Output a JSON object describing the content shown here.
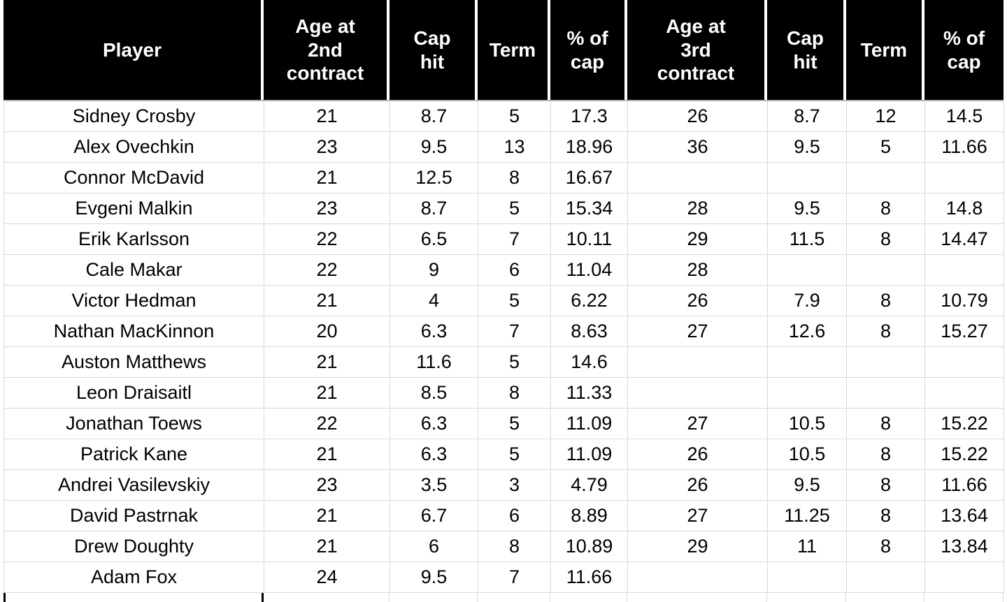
{
  "table": {
    "columns": [
      {
        "label": "Player"
      },
      {
        "label": "Age at 2nd contract"
      },
      {
        "label": "Cap hit"
      },
      {
        "label": "Term"
      },
      {
        "label": "% of cap"
      },
      {
        "label": "Age at 3rd contract"
      },
      {
        "label": "Cap hit"
      },
      {
        "label": "Term"
      },
      {
        "label": "% of cap"
      }
    ],
    "rows": [
      [
        "Sidney Crosby",
        "21",
        "8.7",
        "5",
        "17.3",
        "26",
        "8.7",
        "12",
        "14.5"
      ],
      [
        "Alex Ovechkin",
        "23",
        "9.5",
        "13",
        "18.96",
        "36",
        "9.5",
        "5",
        "11.66"
      ],
      [
        "Connor McDavid",
        "21",
        "12.5",
        "8",
        "16.67",
        "",
        "",
        "",
        ""
      ],
      [
        "Evgeni Malkin",
        "23",
        "8.7",
        "5",
        "15.34",
        "28",
        "9.5",
        "8",
        "14.8"
      ],
      [
        "Erik Karlsson",
        "22",
        "6.5",
        "7",
        "10.11",
        "29",
        "11.5",
        "8",
        "14.47"
      ],
      [
        "Cale Makar",
        "22",
        "9",
        "6",
        "11.04",
        "28",
        "",
        "",
        ""
      ],
      [
        "Victor Hedman",
        "21",
        "4",
        "5",
        "6.22",
        "26",
        "7.9",
        "8",
        "10.79"
      ],
      [
        "Nathan MacKinnon",
        "20",
        "6.3",
        "7",
        "8.63",
        "27",
        "12.6",
        "8",
        "15.27"
      ],
      [
        "Auston Matthews",
        "21",
        "11.6",
        "5",
        "14.6",
        "",
        "",
        "",
        ""
      ],
      [
        "Leon Draisaitl",
        "21",
        "8.5",
        "8",
        "11.33",
        "",
        "",
        "",
        ""
      ],
      [
        "Jonathan Toews",
        "22",
        "6.3",
        "5",
        "11.09",
        "27",
        "10.5",
        "8",
        "15.22"
      ],
      [
        "Patrick Kane",
        "21",
        "6.3",
        "5",
        "11.09",
        "26",
        "10.5",
        "8",
        "15.22"
      ],
      [
        "Andrei Vasilevskiy",
        "23",
        "3.5",
        "3",
        "4.79",
        "26",
        "9.5",
        "8",
        "11.66"
      ],
      [
        "David Pastrnak",
        "21",
        "6.7",
        "6",
        "8.89",
        "27",
        "11.25",
        "8",
        "13.64"
      ],
      [
        "Drew Doughty",
        "21",
        "6",
        "8",
        "10.89",
        "29",
        "11",
        "8",
        "13.84"
      ],
      [
        "Adam Fox",
        "24",
        "9.5",
        "7",
        "11.66",
        "",
        "",
        "",
        ""
      ]
    ]
  },
  "colors": {
    "header_bg": "#000000",
    "header_text": "#ffffff",
    "grid_line": "#d9d9d9",
    "header_underline": "#b3b3b3",
    "cell_text": "#000000",
    "background": "#ffffff",
    "selection_mark": "#000000"
  }
}
